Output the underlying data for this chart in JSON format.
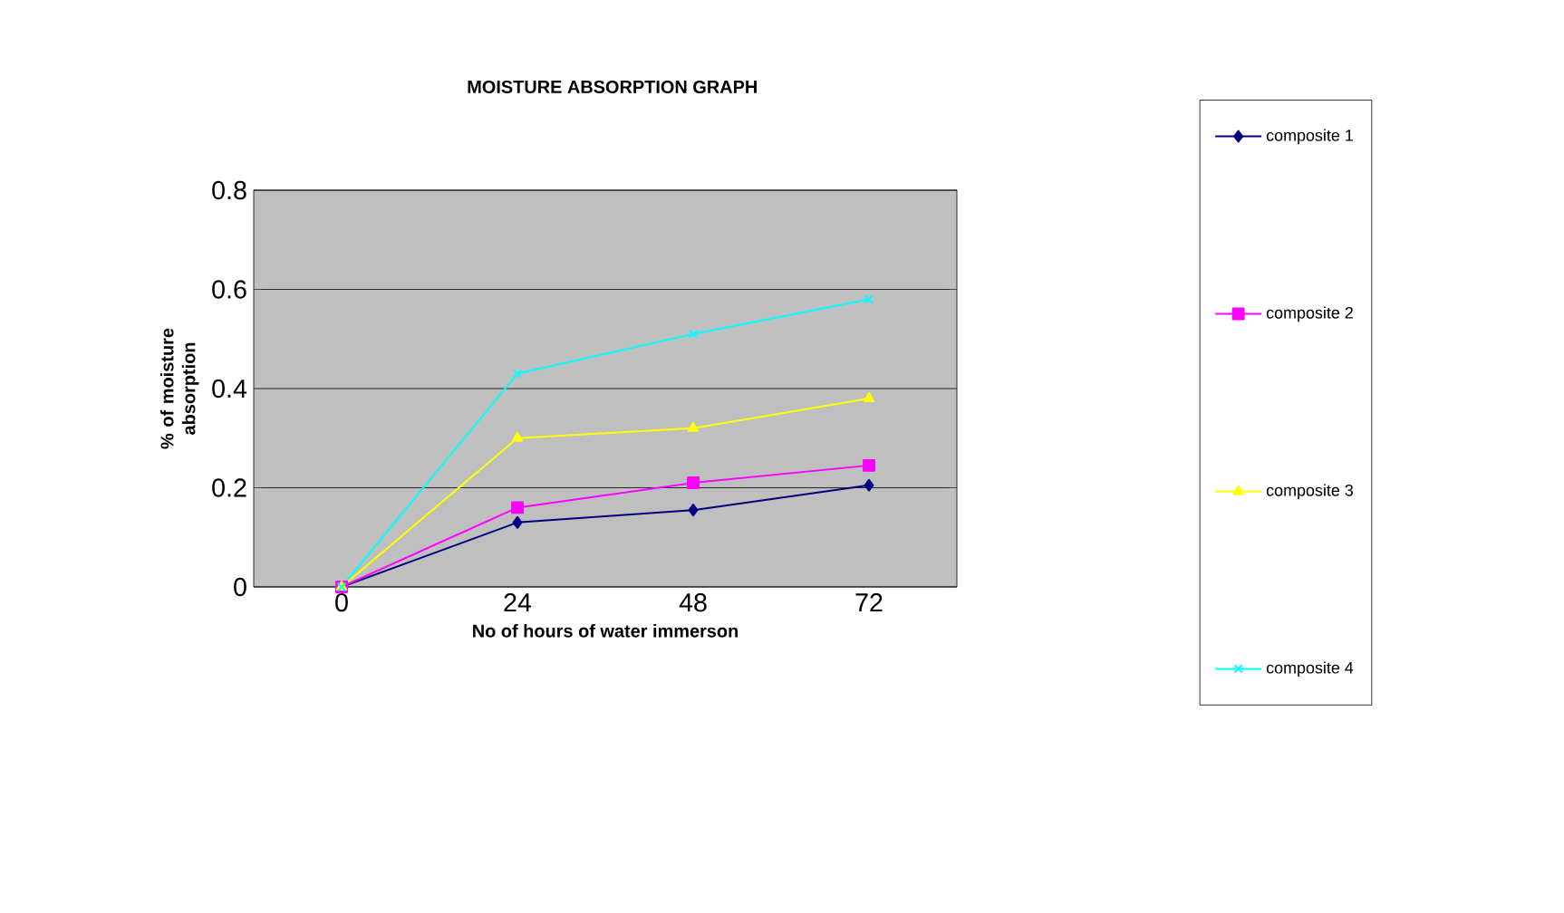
{
  "chart_data": {
    "type": "line",
    "title": "MOISTURE ABSORPTION GRAPH",
    "xlabel": "No of hours of water immerson",
    "ylabel": "% of moisture absorption",
    "categories": [
      "0",
      "24",
      "48",
      "72"
    ],
    "series": [
      {
        "name": "composite 1",
        "color": "#000080",
        "marker": "diamond",
        "values": [
          0,
          0.13,
          0.155,
          0.205
        ]
      },
      {
        "name": "composite 2",
        "color": "#ff00ff",
        "marker": "square",
        "values": [
          0,
          0.16,
          0.21,
          0.245
        ]
      },
      {
        "name": "composite 3",
        "color": "#ffff00",
        "marker": "triangle",
        "values": [
          0,
          0.3,
          0.32,
          0.38
        ]
      },
      {
        "name": "composite 4",
        "color": "#00ffff",
        "marker": "cross",
        "values": [
          0,
          0.43,
          0.51,
          0.58
        ]
      }
    ],
    "ylim": [
      0,
      0.8
    ],
    "yticks": [
      0,
      0.2,
      0.4,
      0.6,
      0.8
    ],
    "grid": "y",
    "legend": "right"
  }
}
